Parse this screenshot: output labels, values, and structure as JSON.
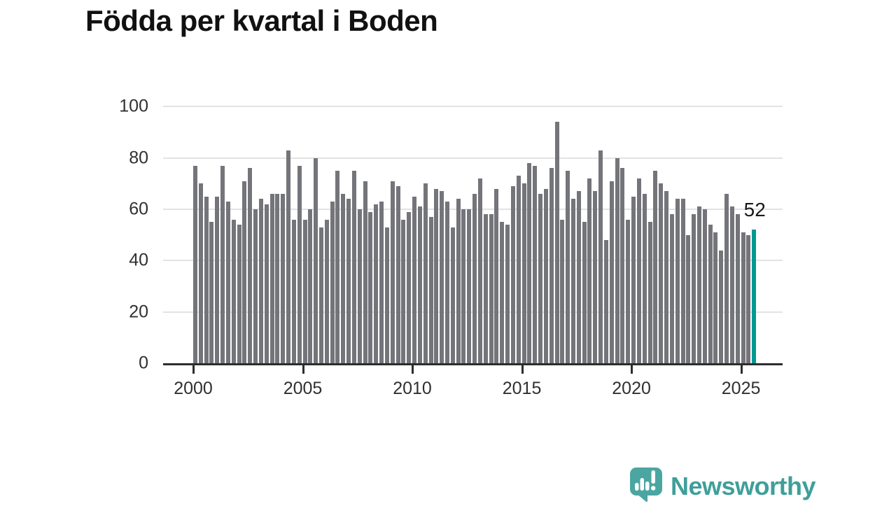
{
  "title": "Födda per kvartal i Boden",
  "chart_data": {
    "type": "bar",
    "title": "Födda per kvartal i Boden",
    "x_start": "2000-Q1",
    "x_end": "2025-Q3",
    "values": [
      77,
      70,
      65,
      55,
      65,
      77,
      63,
      56,
      54,
      71,
      76,
      60,
      64,
      62,
      66,
      66,
      66,
      83,
      56,
      77,
      56,
      60,
      80,
      53,
      56,
      63,
      75,
      66,
      64,
      75,
      60,
      71,
      59,
      62,
      63,
      53,
      71,
      69,
      56,
      59,
      65,
      61,
      70,
      57,
      68,
      67,
      63,
      53,
      64,
      60,
      60,
      66,
      72,
      58,
      58,
      68,
      55,
      54,
      69,
      73,
      70,
      78,
      77,
      66,
      68,
      76,
      94,
      56,
      75,
      64,
      67,
      55,
      72,
      67,
      83,
      48,
      71,
      80,
      76,
      56,
      65,
      72,
      66,
      55,
      75,
      70,
      67,
      58,
      64,
      64,
      50,
      58,
      61,
      60,
      54,
      51,
      44,
      66,
      61,
      58,
      51,
      50,
      52
    ],
    "highlight": {
      "index": 102,
      "value": 52,
      "label": "52"
    },
    "y_ticks": [
      0,
      20,
      40,
      60,
      80,
      100
    ],
    "x_tick_years": [
      "2000",
      "2005",
      "2010",
      "2015",
      "2020",
      "2025"
    ],
    "ylim": [
      0,
      100
    ],
    "grid": "horizontal",
    "legend": "none",
    "colors": {
      "bar": "#74747b",
      "highlight_bar": "#009a93",
      "gridline": "#e3e3e3",
      "axis_line": "#2d2d2d",
      "tick_text": "#303030",
      "title_text": "#111111",
      "label_text": "#1a1a1a"
    }
  },
  "branding": {
    "logo_text": "Newsworthy",
    "logo_color": "#3f9f9a",
    "icon_color": "#4ba6a1",
    "icon_name": "speech-bubble-bar-chart-icon"
  }
}
